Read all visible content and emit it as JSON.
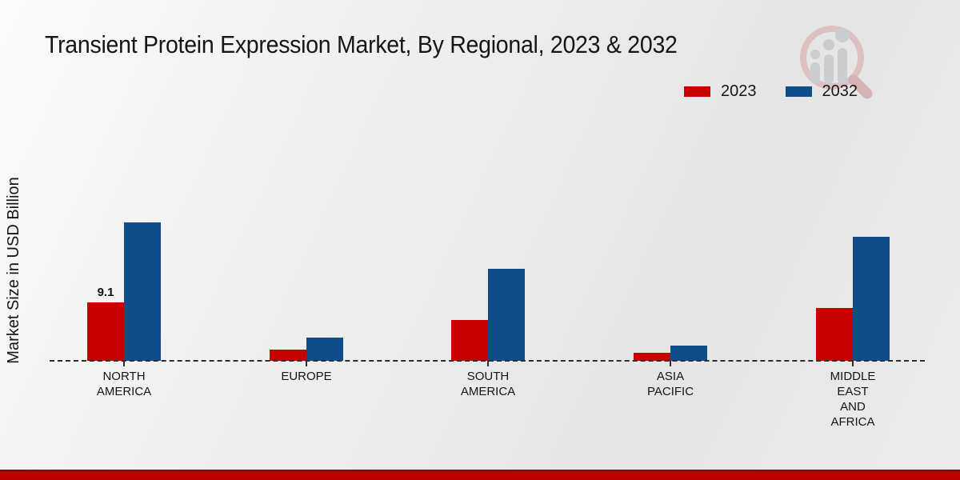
{
  "title": "Transient Protein Expression Market, By Regional, 2023 & 2032",
  "y_axis_label": "Market Size in USD Billion",
  "legend": {
    "items": [
      {
        "label": "2023",
        "color": "#c80000"
      },
      {
        "label": "2032",
        "color": "#0f4c8a"
      }
    ]
  },
  "logo": {
    "icon": "magnifier-bar-chart-logo",
    "ring_color": "#dcbabd",
    "bar_color": "#c6c9cd"
  },
  "footer": {
    "stripe_color": "#b30000"
  },
  "chart_data": {
    "type": "bar",
    "title": "Transient Protein Expression Market, By Regional, 2023 & 2032",
    "xlabel": "",
    "ylabel": "Market Size in USD Billion",
    "categories": [
      "NORTH AMERICA",
      "EUROPE",
      "SOUTH AMERICA",
      "ASIA PACIFIC",
      "MIDDLE EAST AND AFRICA"
    ],
    "category_lines": [
      [
        "NORTH",
        "AMERICA"
      ],
      [
        "EUROPE"
      ],
      [
        "SOUTH",
        "AMERICA"
      ],
      [
        "ASIA",
        "PACIFIC"
      ],
      [
        "MIDDLE",
        "EAST",
        "AND",
        "AFRICA"
      ]
    ],
    "series": [
      {
        "name": "2023",
        "color": "#c80000",
        "values": [
          9.1,
          1.7,
          6.4,
          1.3,
          8.2
        ],
        "data_labels": [
          "9.1",
          "",
          "",
          "",
          ""
        ]
      },
      {
        "name": "2032",
        "color": "#0f4c8a",
        "values": [
          21.6,
          3.6,
          14.4,
          2.4,
          19.3
        ],
        "data_labels": [
          "",
          "",
          "",
          "",
          ""
        ]
      }
    ],
    "ylim": [
      0,
      24
    ],
    "y_axis_ticks_visible": false,
    "grid": false,
    "baseline_style": "dashed",
    "legend_position": "top-right"
  }
}
